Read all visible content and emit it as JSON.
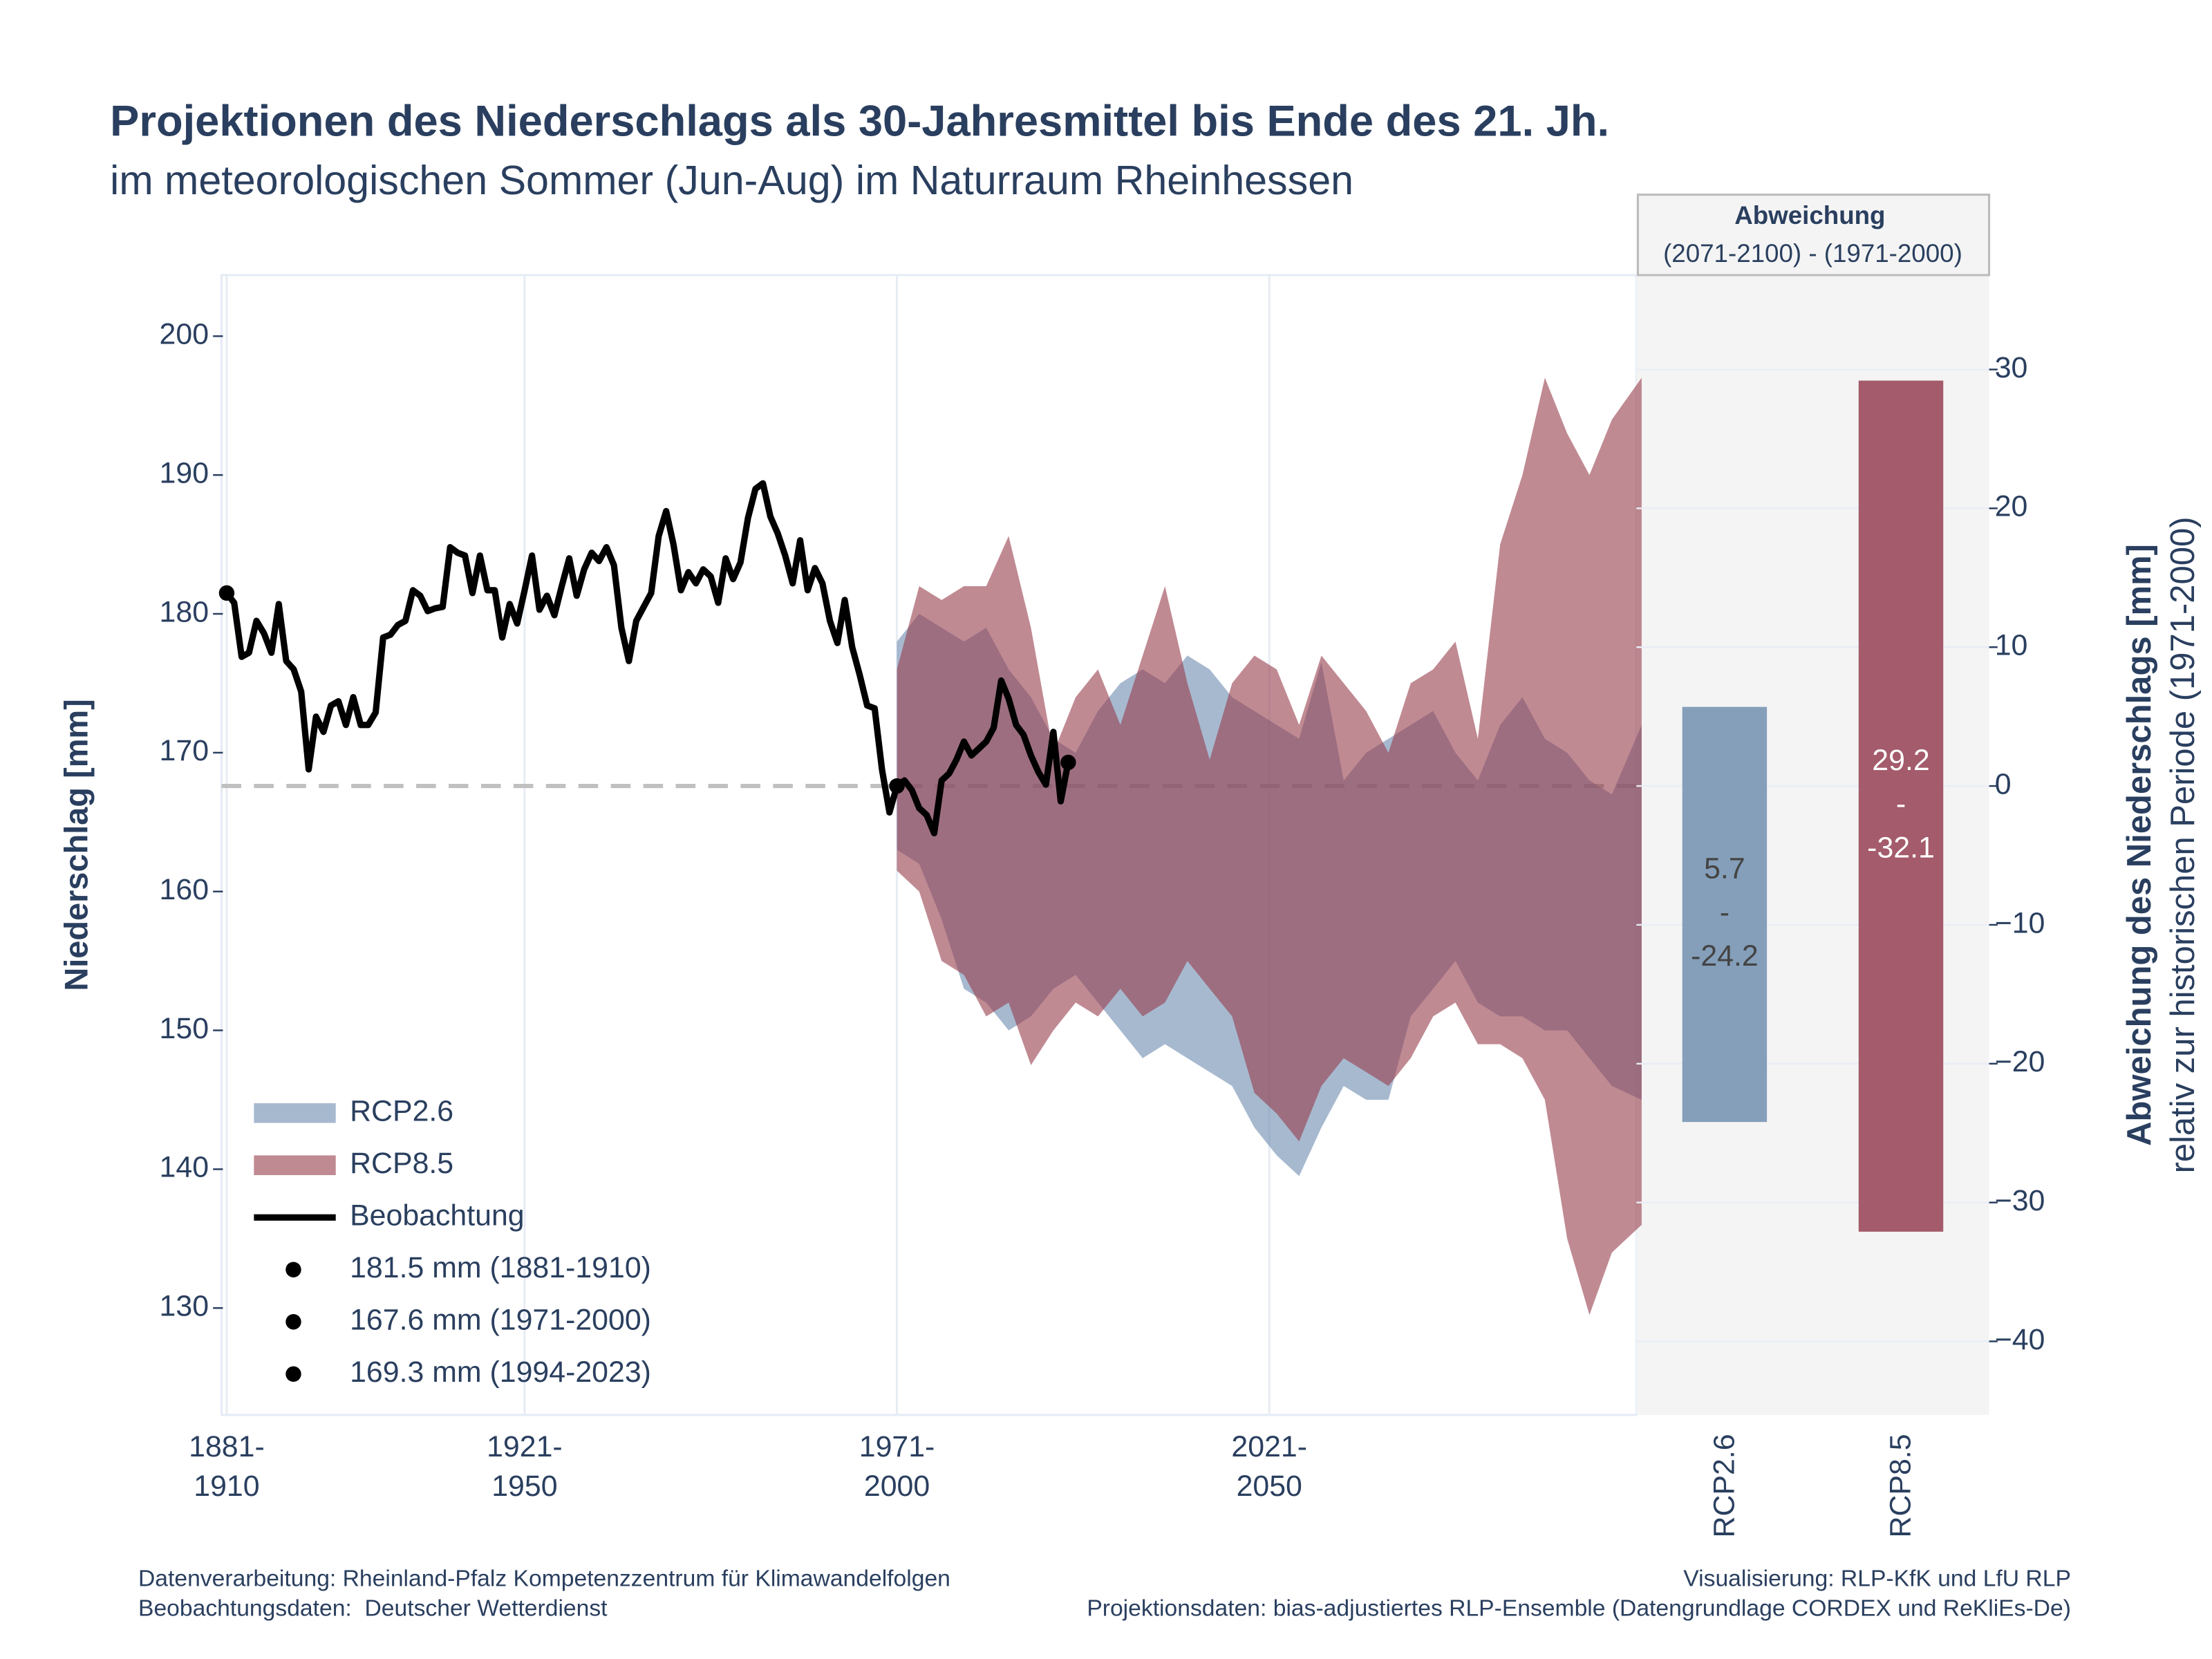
{
  "chart_data": [
    {
      "type": "line",
      "title": "Projektionen des Niederschlags als 30-Jahresmittel bis Ende des 21. Jh.",
      "subtitle": "im meteorologischen Sommer (Jun-Aug) im Naturraum Rheinhessen",
      "y_label": "Niederschlag [mm]",
      "xlim": [
        1880.3,
        2070.3
      ],
      "xticks": [
        {
          "value": 1881,
          "label": "1881-\n1910"
        },
        {
          "value": 1921,
          "label": "1921-\n1950"
        },
        {
          "value": 1971,
          "label": "1971-\n2000"
        },
        {
          "value": 2021,
          "label": "2021-\n2050"
        }
      ],
      "ylim": [
        122.3,
        204.4
      ],
      "yticks": [
        130,
        140,
        150,
        160,
        170,
        180,
        190,
        200
      ],
      "grid": "x",
      "legend": "bottom-left",
      "series": [
        {
          "name": "RCP2.6",
          "kind": "band",
          "color": "#6c8aaf",
          "opacity": 0.6,
          "x": [
            1971,
            1974,
            1977,
            1980,
            1983,
            1986,
            1989,
            1992,
            1995,
            1998,
            2001,
            2004,
            2007,
            2010,
            2013,
            2016,
            2019,
            2022,
            2025,
            2028,
            2031,
            2034,
            2037,
            2040,
            2043,
            2046,
            2049,
            2052,
            2055,
            2058,
            2061,
            2064,
            2067,
            2071
          ],
          "upper": [
            178,
            180,
            179,
            178,
            179,
            176,
            174,
            171,
            170,
            173,
            175,
            176,
            175,
            177,
            176,
            174,
            173,
            172,
            171,
            176.5,
            168,
            170,
            171,
            172,
            173,
            170,
            168,
            172,
            174,
            171,
            170,
            168,
            167,
            172
          ],
          "lower": [
            163,
            162,
            158,
            153,
            152,
            150,
            151,
            153,
            154,
            152,
            150,
            148,
            149,
            148,
            147,
            146,
            143,
            141,
            139.5,
            143,
            146,
            145,
            145,
            151,
            153,
            155,
            152,
            151,
            151,
            150,
            150,
            148,
            146,
            145
          ]
        },
        {
          "name": "RCP8.5",
          "kind": "band",
          "color": "#963c4b",
          "opacity": 0.6,
          "x": [
            1971,
            1974,
            1977,
            1980,
            1983,
            1986,
            1989,
            1992,
            1995,
            1998,
            2001,
            2004,
            2007,
            2010,
            2013,
            2016,
            2019,
            2022,
            2025,
            2028,
            2031,
            2034,
            2037,
            2040,
            2043,
            2046,
            2049,
            2052,
            2055,
            2058,
            2061,
            2064,
            2067,
            2071
          ],
          "upper": [
            176,
            182,
            181,
            182,
            182,
            185.6,
            179,
            170,
            174,
            176,
            172,
            177,
            182,
            175,
            169.5,
            175,
            177,
            176,
            172,
            177,
            175,
            173,
            170,
            175,
            176,
            178,
            171,
            185,
            190,
            197,
            193,
            190,
            194,
            197
          ],
          "lower": [
            161.5,
            160,
            155,
            154,
            151,
            152,
            147.5,
            150,
            152,
            151,
            153,
            151,
            152,
            155,
            153,
            151,
            145.5,
            144,
            142,
            146,
            148,
            147,
            146,
            148,
            151,
            152,
            149,
            149,
            148,
            145,
            135,
            129.5,
            134,
            136
          ]
        },
        {
          "name": "Beobachtung",
          "kind": "line",
          "color": "#000000",
          "x": [
            1881,
            1882,
            1883,
            1884,
            1885,
            1886,
            1887,
            1888,
            1889,
            1890,
            1891,
            1892,
            1893,
            1894,
            1895,
            1896,
            1897,
            1898,
            1899,
            1900,
            1901,
            1902,
            1903,
            1904,
            1905,
            1906,
            1907,
            1908,
            1909,
            1910,
            1911,
            1912,
            1913,
            1914,
            1915,
            1916,
            1917,
            1918,
            1919,
            1920,
            1921,
            1922,
            1923,
            1924,
            1925,
            1926,
            1927,
            1928,
            1929,
            1930,
            1931,
            1932,
            1933,
            1934,
            1935,
            1936,
            1937,
            1938,
            1939,
            1940,
            1941,
            1942,
            1943,
            1944,
            1945,
            1946,
            1947,
            1948,
            1949,
            1950,
            1951,
            1952,
            1953,
            1954,
            1955,
            1956,
            1957,
            1958,
            1959,
            1960,
            1961,
            1962,
            1963,
            1964,
            1965,
            1966,
            1967,
            1968,
            1969,
            1970,
            1971,
            1972,
            1973,
            1974,
            1975,
            1976,
            1977,
            1978,
            1979,
            1980,
            1981,
            1982,
            1983,
            1984,
            1985,
            1986,
            1987,
            1988,
            1989,
            1990,
            1991,
            1992,
            1993,
            1994
          ],
          "values": [
            181.5,
            180.8,
            176.9,
            177.2,
            179.5,
            178.6,
            177.2,
            180.7,
            176.6,
            176.0,
            174.4,
            168.8,
            172.6,
            171.5,
            173.4,
            173.7,
            172.0,
            174.0,
            172.0,
            172.0,
            172.9,
            178.3,
            178.5,
            179.2,
            179.5,
            181.7,
            181.3,
            180.2,
            180.4,
            180.5,
            184.8,
            184.4,
            184.2,
            181.5,
            184.2,
            181.7,
            181.7,
            178.3,
            180.7,
            179.3,
            181.7,
            184.2,
            180.3,
            181.3,
            179.9,
            182.0,
            184.0,
            181.3,
            183.2,
            184.4,
            183.8,
            184.8,
            183.5,
            179.0,
            176.6,
            179.5,
            180.5,
            181.5,
            185.6,
            187.4,
            185.0,
            181.7,
            183.0,
            182.2,
            183.2,
            182.7,
            180.8,
            184.0,
            182.5,
            183.7,
            186.9,
            189.0,
            189.4,
            187.0,
            185.8,
            184.2,
            182.2,
            185.3,
            181.7,
            183.3,
            182.2,
            179.5,
            177.9,
            181.0,
            177.6,
            175.6,
            173.4,
            173.2,
            168.8,
            165.7,
            167.6,
            168.0,
            167.3,
            166.0,
            165.5,
            164.2,
            168.0,
            168.5,
            169.5,
            170.8,
            169.8,
            170.3,
            170.8,
            171.8,
            175.2,
            173.9,
            172.0,
            171.3,
            169.8,
            168.6,
            167.7,
            171.5,
            166.5,
            169.3
          ]
        }
      ],
      "points": [
        {
          "name": "181.5 mm (1881-1910)",
          "x": 1881,
          "y": 181.5
        },
        {
          "name": "167.6 mm (1971-2000)",
          "x": 1971,
          "y": 167.6
        },
        {
          "name": "169.3 mm (1994-2023)",
          "x": 1994,
          "y": 169.3
        }
      ]
    },
    {
      "type": "bar",
      "title": "Abweichung",
      "subtitle": "(2071-2100) - (1971-2000)",
      "y2_label": "Abweichung des Niederschlags [mm]",
      "y2_sublabel": "relativ zur historischen Periode (1971-2000)",
      "categories": [
        "RCP2.6",
        "RCP8.5"
      ],
      "high": [
        5.7,
        29.2
      ],
      "low": [
        -24.2,
        -32.1
      ],
      "value_labels": [
        "5.7\n-\n-24.2",
        "29.2\n-\n-32.1"
      ],
      "colors": [
        "#859fba",
        "#a45b6b"
      ],
      "label_colors": [
        "#444444",
        "#ffffff"
      ],
      "y2lim": [
        -45.3,
        36.8
      ],
      "y2ticks": [
        {
          "value": -40,
          "label": "−40"
        },
        {
          "value": -30,
          "label": "−30"
        },
        {
          "value": -20,
          "label": "−20"
        },
        {
          "value": -10,
          "label": "−10"
        },
        0,
        10,
        20,
        30
      ]
    }
  ],
  "footer": {
    "left": [
      "Datenverarbeitung: Rheinland-Pfalz Kompetenzzentrum für Klimawandelfolgen",
      "Beobachtungsdaten:  Deutscher Wetterdienst"
    ],
    "right": [
      "Visualisierung: RLP-KfK und LfU RLP",
      "Projektionsdaten: bias-adjustiertes RLP-Ensemble (Datengrundlage CORDEX und ReKliEs-De)"
    ]
  }
}
